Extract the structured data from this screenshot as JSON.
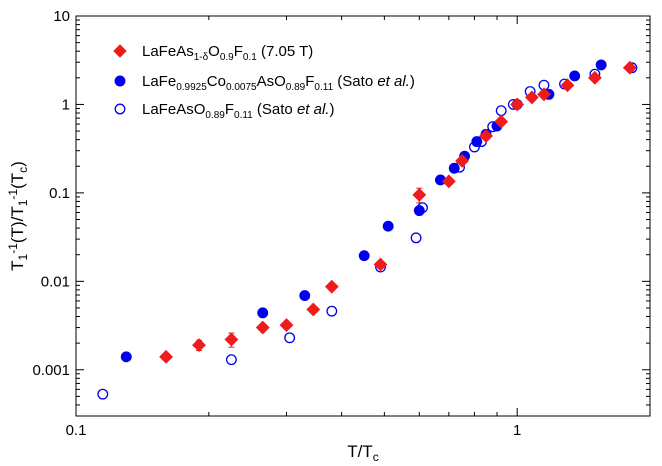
{
  "chart_data": {
    "type": "scatter",
    "x_scale": "log",
    "y_scale": "log",
    "xlim": [
      0.1,
      2.0
    ],
    "ylim": [
      0.0003,
      10
    ],
    "x_major_ticks": [
      0.1,
      1
    ],
    "x_tick_labels": [
      "0.1",
      "1"
    ],
    "y_major_ticks": [
      0.001,
      0.01,
      0.1,
      1,
      10
    ],
    "y_tick_labels": [
      "0.001",
      "0.01",
      "0.1",
      "1",
      "10"
    ],
    "xlabel": {
      "main": "T/T",
      "sub": "c"
    },
    "ylabel": {
      "parts": [
        {
          "t": "T"
        },
        {
          "t": "1",
          "s": "sub"
        },
        {
          "t": "-1",
          "s": "sup"
        },
        {
          "t": "(T)/T"
        },
        {
          "t": "1",
          "s": "sub"
        },
        {
          "t": "-1",
          "s": "sup"
        },
        {
          "t": "(T"
        },
        {
          "t": "c",
          "s": "sub"
        },
        {
          "t": ")"
        }
      ]
    },
    "legend_position": "top-left",
    "grid": false,
    "series": [
      {
        "name": "LaFeAs1-δO0.9F0.1 (7.05 T)",
        "legend_parts": [
          {
            "t": "LaFeAs"
          },
          {
            "t": "1-δ",
            "s": "sub"
          },
          {
            "t": "O"
          },
          {
            "t": "0.9",
            "s": "sub"
          },
          {
            "t": "F"
          },
          {
            "t": "0.1",
            "s": "sub"
          },
          {
            "t": " (7.05 T)"
          }
        ],
        "marker": "diamond",
        "color": "#ee1c1c",
        "filled": true,
        "x": [
          0.16,
          0.19,
          0.225,
          0.265,
          0.3,
          0.345,
          0.38,
          0.49,
          0.6,
          0.7,
          0.75,
          0.85,
          0.92,
          1.0,
          1.08,
          1.15,
          1.3,
          1.5,
          1.8
        ],
        "y": [
          0.0014,
          0.0019,
          0.0022,
          0.003,
          0.0032,
          0.0048,
          0.0087,
          0.0155,
          0.095,
          0.135,
          0.23,
          0.44,
          0.64,
          1.0,
          1.2,
          1.3,
          1.65,
          2.0,
          2.6
        ],
        "yerr": [
          0.0001,
          0.00025,
          0.0004,
          0,
          0.0003,
          0,
          0,
          0.0015,
          0.018,
          0.012,
          0.02,
          0.04,
          0.05,
          0.06,
          0.07,
          0.08,
          0.1,
          0.12,
          0.15
        ]
      },
      {
        "name": "LaFe0.9925Co0.0075AsO0.89F0.11 (Sato et al.)",
        "legend_parts": [
          {
            "t": "LaFe"
          },
          {
            "t": "0.9925",
            "s": "sub"
          },
          {
            "t": "Co"
          },
          {
            "t": "0.0075",
            "s": "sub"
          },
          {
            "t": "AsO"
          },
          {
            "t": "0.89",
            "s": "sub"
          },
          {
            "t": "F"
          },
          {
            "t": "0.11",
            "s": "sub"
          },
          {
            "t": " (Sato "
          },
          {
            "t": "et al.",
            "s": "it"
          },
          {
            "t": ")"
          }
        ],
        "marker": "circle",
        "color": "#0000ee",
        "filled": true,
        "x": [
          0.13,
          0.265,
          0.33,
          0.45,
          0.51,
          0.6,
          0.67,
          0.72,
          0.76,
          0.81,
          0.85,
          0.9,
          1.0,
          1.18,
          1.35,
          1.55
        ],
        "y": [
          0.0014,
          0.0044,
          0.0069,
          0.0195,
          0.042,
          0.063,
          0.14,
          0.19,
          0.26,
          0.38,
          0.46,
          0.57,
          1.0,
          1.3,
          2.1,
          2.8
        ]
      },
      {
        "name": "LaFeAsO0.89F0.11 (Sato et al.)",
        "legend_parts": [
          {
            "t": "LaFeAsO"
          },
          {
            "t": "0.89",
            "s": "sub"
          },
          {
            "t": "F"
          },
          {
            "t": "0.11",
            "s": "sub"
          },
          {
            "t": " (Sato "
          },
          {
            "t": "et al.",
            "s": "it"
          },
          {
            "t": ")"
          }
        ],
        "marker": "circle",
        "color": "#0000ee",
        "filled": false,
        "x": [
          0.115,
          0.225,
          0.305,
          0.38,
          0.49,
          0.59,
          0.61,
          0.74,
          0.8,
          0.83,
          0.88,
          0.92,
          0.98,
          1.07,
          1.15,
          1.28,
          1.5,
          1.82
        ],
        "y": [
          0.00053,
          0.0013,
          0.0023,
          0.0046,
          0.0145,
          0.031,
          0.068,
          0.195,
          0.33,
          0.38,
          0.56,
          0.85,
          1.0,
          1.4,
          1.65,
          1.7,
          2.2,
          2.6
        ]
      }
    ]
  }
}
